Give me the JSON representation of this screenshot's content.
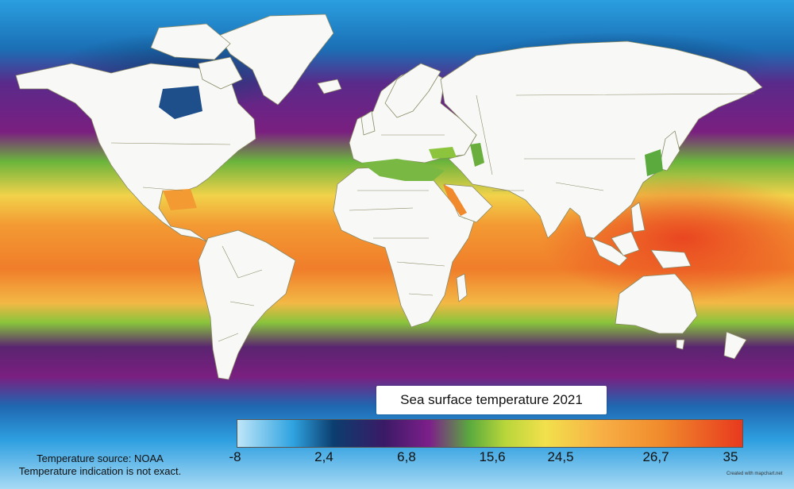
{
  "map": {
    "title": "Sea surface temperature 2021",
    "source_line1": "Temperature source: NOAA",
    "source_line2": "Temperature indication is not exact.",
    "credit": "Created with mapchart.net"
  },
  "legend": {
    "ticks": [
      {
        "label": "-8",
        "color": "#bfe6f8"
      },
      {
        "label": "2,4",
        "color": "#0b3e6f"
      },
      {
        "label": "6,8",
        "color": "#7d1f8a"
      },
      {
        "label": "15,6",
        "color": "#5aaa3e"
      },
      {
        "label": "24,5",
        "color": "#f2e04c"
      },
      {
        "label": "26,7",
        "color": "#f08a2c"
      },
      {
        "label": "35",
        "color": "#e8391e"
      }
    ]
  },
  "colors": {
    "land": "#f8f8f6",
    "border": "#8a8a66",
    "cold": "#2fa3e0",
    "very_cold": "#bfe6f8",
    "purple": "#7d1f8a",
    "green": "#5aaa3e",
    "warm": "#f08a2c",
    "hot": "#e8391e"
  }
}
